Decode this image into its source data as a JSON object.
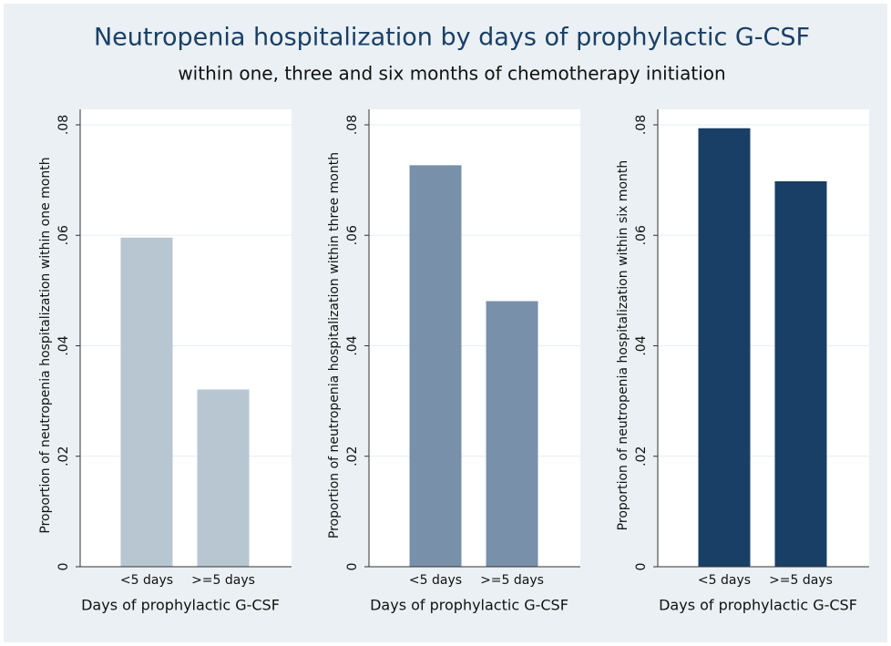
{
  "title": "Neutropenia hospitalization by days of prophylactic G-CSF",
  "subtitle": "within one, three and six months of chemotherapy initiation",
  "chart_data": [
    {
      "type": "bar",
      "categories": [
        "<5 days",
        ">=5 days"
      ],
      "values": [
        0.0595,
        0.032
      ],
      "color": "#b8c6d2",
      "xlabel": "Days of prophylactic G-CSF",
      "ylabel": "Proportion of neutropenia hospitalization within one month",
      "ylim": [
        0,
        0.08
      ],
      "yticks": [
        0,
        {
          "value": 0.02,
          "label": ".02"
        },
        {
          "value": 0.04,
          "label": ".04"
        },
        {
          "value": 0.06,
          "label": ".06"
        },
        {
          "value": 0.08,
          "label": ".08"
        }
      ],
      "grid": true
    },
    {
      "type": "bar",
      "categories": [
        "<5 days",
        ">=5 days"
      ],
      "values": [
        0.0726,
        0.048
      ],
      "color": "#7890aa",
      "xlabel": "Days of prophylactic G-CSF",
      "ylabel": "Proportion of neutropenia hospitalization within three month",
      "ylim": [
        0,
        0.08
      ],
      "yticks": [
        0,
        {
          "value": 0.02,
          "label": ".02"
        },
        {
          "value": 0.04,
          "label": ".04"
        },
        {
          "value": 0.06,
          "label": ".06"
        },
        {
          "value": 0.08,
          "label": ".08"
        }
      ],
      "grid": true
    },
    {
      "type": "bar",
      "categories": [
        "<5 days",
        ">=5 days"
      ],
      "values": [
        0.0793,
        0.0697
      ],
      "color": "#1a3f66",
      "xlabel": "Days of prophylactic G-CSF",
      "ylabel": "Proportion of neutropenia hospitalization within six month",
      "ylim": [
        0,
        0.08
      ],
      "yticks": [
        0,
        {
          "value": 0.02,
          "label": ".02"
        },
        {
          "value": 0.04,
          "label": ".04"
        },
        {
          "value": 0.06,
          "label": ".06"
        },
        {
          "value": 0.08,
          "label": ".08"
        }
      ],
      "grid": true
    }
  ]
}
